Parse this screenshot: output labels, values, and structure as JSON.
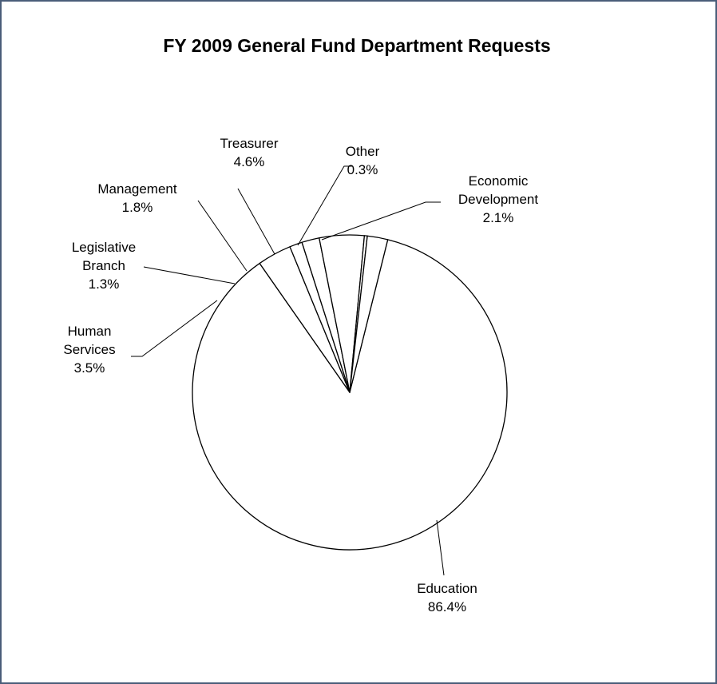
{
  "chart_data": {
    "type": "pie",
    "title": "FY 2009 General Fund Department Requests",
    "unit": "%",
    "slices": [
      {
        "name": "Education",
        "value": 86.4,
        "label": [
          "Education",
          "86.4%"
        ]
      },
      {
        "name": "Human Services",
        "value": 3.5,
        "label": [
          "Human",
          "Services",
          "3.5%"
        ]
      },
      {
        "name": "Legislative Branch",
        "value": 1.3,
        "label": [
          "Legislative",
          "Branch",
          "1.3%"
        ]
      },
      {
        "name": "Management",
        "value": 1.8,
        "label": [
          "Management",
          "1.8%"
        ]
      },
      {
        "name": "Treasurer",
        "value": 4.6,
        "label": [
          "Treasurer",
          "4.6%"
        ]
      },
      {
        "name": "Other",
        "value": 0.3,
        "label": [
          "Other",
          "0.3%"
        ]
      },
      {
        "name": "Economic Development",
        "value": 2.1,
        "label": [
          "Economic",
          "Development",
          "2.1%"
        ]
      }
    ],
    "slice_fill": "#ffffff",
    "slice_stroke": "#000000",
    "legend": "none"
  },
  "frame": {
    "border_color": "#4a5d79"
  }
}
